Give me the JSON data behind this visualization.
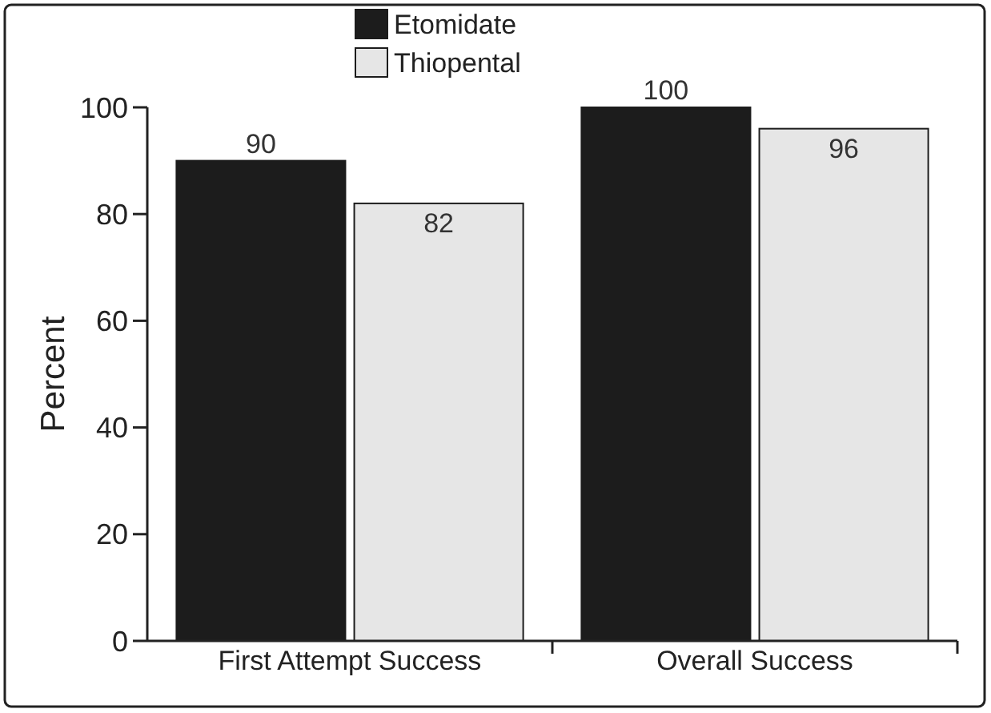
{
  "chart_data": {
    "type": "bar",
    "ylabel": "Percent",
    "categories": [
      "First Attempt Success",
      "Overall Success"
    ],
    "series": [
      {
        "name": "Etomidate",
        "color": "#1c1c1c",
        "values": [
          90,
          100
        ]
      },
      {
        "name": "Thiopental",
        "color": "#e6e6e6",
        "values": [
          82,
          96
        ]
      }
    ],
    "ylim": [
      0,
      100
    ],
    "yticks": [
      0,
      20,
      40,
      60,
      80,
      100
    ],
    "data_labels": true,
    "legend": "top",
    "grid": false
  }
}
